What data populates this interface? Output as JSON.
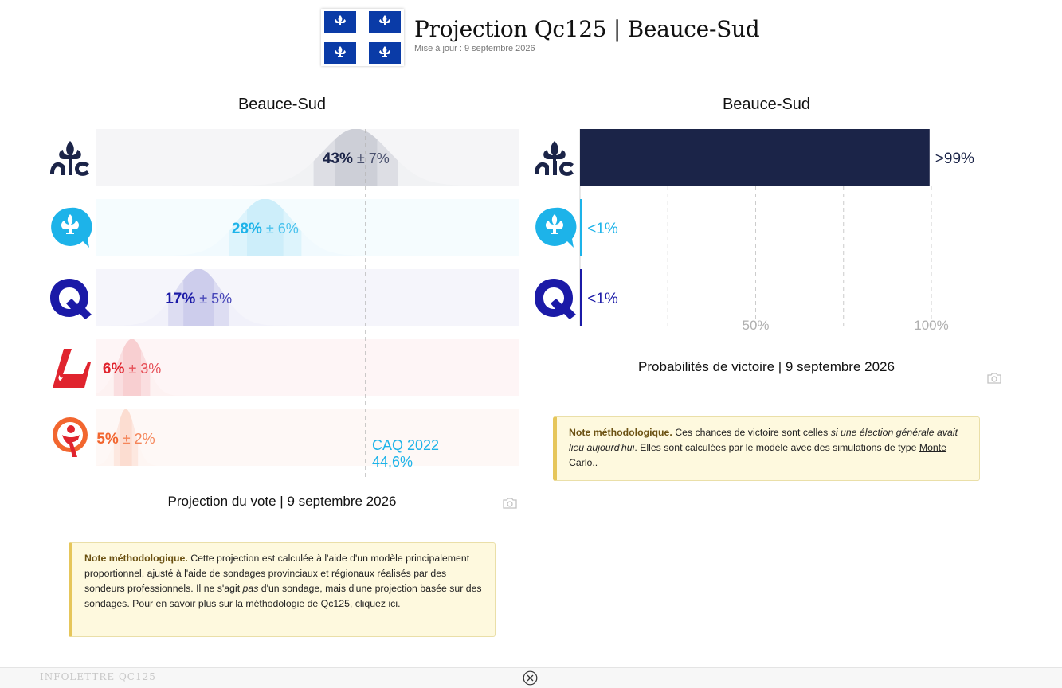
{
  "header": {
    "title": "Projection Qc125 | Beauce-Sud",
    "updated": "Mise à jour : 9 septembre 2026"
  },
  "vote_chart": {
    "title": "Beauce-Sud",
    "caption": "Projection du vote | 9 septembre 2026",
    "reference_label_line1": "CAQ 2022",
    "reference_label_line2": "44,6%"
  },
  "win_chart": {
    "title": "Beauce-Sud",
    "caption": "Probabilités de victoire | 9 septembre 2026"
  },
  "vote_note": {
    "heading": "Note méthodologique.",
    "text1": " Cette projection est calculée à l'aide d'un modèle principalement proportionnel, ajusté à l'aide de sondages provinciaux et régionaux réalisés par des sondeurs professionnels. Il ne s'agit ",
    "text_em": "pas",
    "text2": " d'un sondage, mais d'une projection basée sur des sondages. Pour en savoir plus sur la méthodologie de Qc125, cliquez ",
    "link": "ici",
    "text3": "."
  },
  "win_note": {
    "heading": "Note méthodologique.",
    "text1": " Ces chances de victoire sont celles ",
    "text_em": "si une élection générale avait lieu aujourd'hui",
    "text2": ". Elles sont calculées par le modèle avec des simulations de type ",
    "link": "Monte Carlo",
    "text3": ".."
  },
  "footer": {
    "label": "INFOLETTRE QC125"
  },
  "colors": {
    "caq": "#1b2448",
    "pq": "#1db3e9",
    "pcq": "#1b1aa7",
    "plq": "#e0242e",
    "qs": "#f2662f",
    "win_bar": "#1b2448",
    "ref_line": "#b5b5b5"
  },
  "icons": [
    "caq-logo-icon",
    "pq-logo-icon",
    "pcq-logo-icon",
    "plq-logo-icon",
    "qs-logo-icon",
    "quebec-flag-icon",
    "camera-icon",
    "close-circle-icon"
  ],
  "chart_data": [
    {
      "type": "bar",
      "title": "Beauce-Sud",
      "caption": "Projection du vote | 9 septembre 2026",
      "categories": [
        "CAQ",
        "PQ",
        "PCQ",
        "PLQ",
        "QS"
      ],
      "values": [
        43,
        28,
        17,
        6,
        5
      ],
      "margins": [
        7,
        6,
        5,
        3,
        2
      ],
      "labels": [
        "43%",
        "28%",
        "17%",
        "6%",
        "5%"
      ],
      "margin_labels": [
        "± 7%",
        "± 6%",
        "± 5%",
        "± 3%",
        "± 2%"
      ],
      "reference_line": {
        "label": "CAQ 2022",
        "value": 44.6,
        "value_label": "44,6%"
      },
      "xlim": [
        0,
        70
      ],
      "colors": [
        "#1b2448",
        "#1db3e9",
        "#1b1aa7",
        "#e0242e",
        "#f2662f"
      ]
    },
    {
      "type": "bar",
      "title": "Beauce-Sud",
      "caption": "Probabilités de victoire | 9 septembre 2026",
      "categories": [
        "CAQ",
        "PQ",
        "PCQ"
      ],
      "values": [
        99.5,
        0.5,
        0.5
      ],
      "labels": [
        ">99%",
        "<1%",
        "<1%"
      ],
      "xlim": [
        0,
        100
      ],
      "xticks": [
        "50%",
        "100%"
      ],
      "colors": [
        "#1b2448",
        "#1db3e9",
        "#1b1aa7"
      ]
    }
  ]
}
